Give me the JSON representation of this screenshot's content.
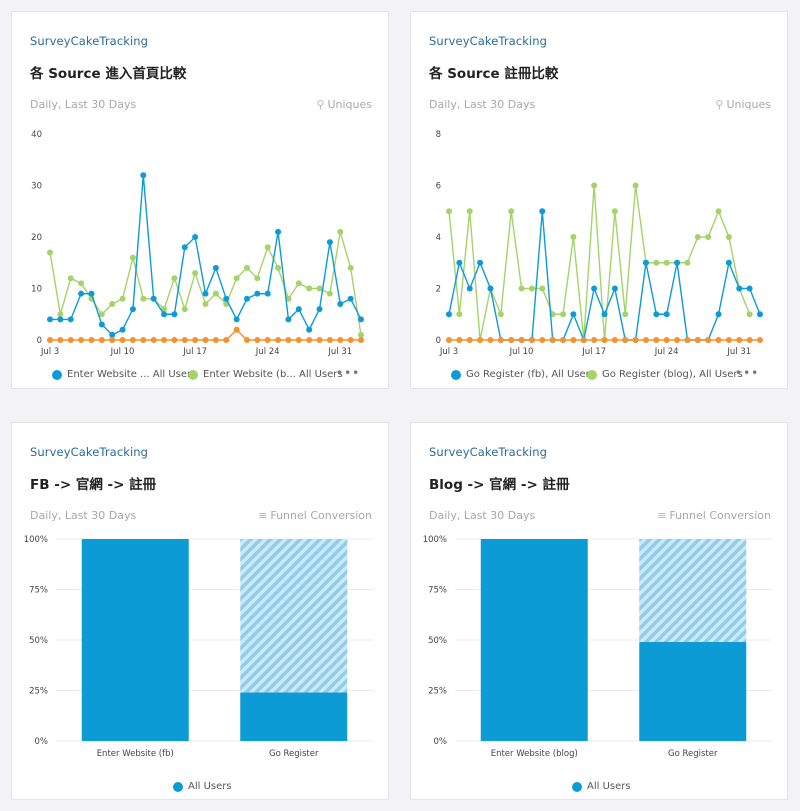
{
  "cards": [
    {
      "project": "SurveyCakeTracking",
      "title": "各 Source 進入首頁比較",
      "range": "Daily, Last 30 Days",
      "metric": "Uniques",
      "metric_icon": "uniques-icon",
      "legend": [
        {
          "label": "Enter Website ... All Users",
          "color": "#0d9bd6"
        },
        {
          "label": "Enter Website (b... All Users",
          "color": "#a5d36a"
        }
      ],
      "legend_more": "•••"
    },
    {
      "project": "SurveyCakeTracking",
      "title": "各 Source 註冊比較",
      "range": "Daily, Last 30 Days",
      "metric": "Uniques",
      "metric_icon": "uniques-icon",
      "legend": [
        {
          "label": "Go Register (fb), All Users",
          "color": "#0d9bd6"
        },
        {
          "label": "Go Register (blog), All Users",
          "color": "#a5d36a"
        }
      ],
      "legend_more": "•••"
    },
    {
      "project": "SurveyCakeTracking",
      "title": "FB -> 官網 -> 註冊",
      "range": "Daily, Last 30 Days",
      "metric": "Funnel Conversion",
      "metric_icon": "funnel-icon",
      "legend": [
        {
          "label": "All Users",
          "color": "#0d9bd6"
        }
      ]
    },
    {
      "project": "SurveyCakeTracking",
      "title": "Blog -> 官網 -> 註冊",
      "range": "Daily, Last 30 Days",
      "metric": "Funnel Conversion",
      "metric_icon": "funnel-icon",
      "legend": [
        {
          "label": "All Users",
          "color": "#0d9bd6"
        }
      ]
    }
  ],
  "chart_data": [
    {
      "type": "line",
      "ylim": [
        0,
        40
      ],
      "yticks": [
        "0",
        "10",
        "20",
        "30",
        "40"
      ],
      "xtick_labels": [
        "Jul 3",
        "Jul 10",
        "Jul 17",
        "Jul 24",
        "Jul 31"
      ],
      "xtick_index": [
        0,
        7,
        14,
        21,
        28
      ],
      "x": [
        "Jul 3",
        "Jul 4",
        "Jul 5",
        "Jul 6",
        "Jul 7",
        "Jul 8",
        "Jul 9",
        "Jul 10",
        "Jul 11",
        "Jul 12",
        "Jul 13",
        "Jul 14",
        "Jul 15",
        "Jul 16",
        "Jul 17",
        "Jul 18",
        "Jul 19",
        "Jul 20",
        "Jul 21",
        "Jul 22",
        "Jul 23",
        "Jul 24",
        "Jul 25",
        "Jul 26",
        "Jul 27",
        "Jul 28",
        "Jul 29",
        "Jul 30",
        "Jul 31",
        "Aug 1",
        "Aug 2"
      ],
      "series": [
        {
          "color": "#a5d36a",
          "values": [
            17,
            5,
            12,
            11,
            8,
            5,
            7,
            8,
            16,
            8,
            8,
            6,
            12,
            6,
            13,
            7,
            9,
            7,
            12,
            14,
            12,
            18,
            14,
            8,
            11,
            10,
            10,
            9,
            21,
            14,
            1
          ]
        },
        {
          "color": "#0d9bd6",
          "values": [
            4,
            4,
            4,
            9,
            9,
            3,
            1,
            2,
            6,
            32,
            8,
            5,
            5,
            18,
            20,
            9,
            14,
            8,
            4,
            8,
            9,
            9,
            21,
            4,
            6,
            2,
            6,
            19,
            7,
            8,
            4
          ]
        },
        {
          "color": "#f7902f",
          "values": [
            0,
            0,
            0,
            0,
            0,
            0,
            0,
            0,
            0,
            0,
            0,
            0,
            0,
            0,
            0,
            0,
            0,
            0,
            2,
            0,
            0,
            0,
            0,
            0,
            0,
            0,
            0,
            0,
            0,
            0,
            0
          ]
        }
      ]
    },
    {
      "type": "line",
      "ylim": [
        0,
        8
      ],
      "yticks": [
        "0",
        "2",
        "4",
        "6",
        "8"
      ],
      "xtick_labels": [
        "Jul 3",
        "Jul 10",
        "Jul 17",
        "Jul 24",
        "Jul 31"
      ],
      "xtick_index": [
        0,
        7,
        14,
        21,
        28
      ],
      "x": [
        "Jul 3",
        "Jul 4",
        "Jul 5",
        "Jul 6",
        "Jul 7",
        "Jul 8",
        "Jul 9",
        "Jul 10",
        "Jul 11",
        "Jul 12",
        "Jul 13",
        "Jul 14",
        "Jul 15",
        "Jul 16",
        "Jul 17",
        "Jul 18",
        "Jul 19",
        "Jul 20",
        "Jul 21",
        "Jul 22",
        "Jul 23",
        "Jul 24",
        "Jul 25",
        "Jul 26",
        "Jul 27",
        "Jul 28",
        "Jul 29",
        "Jul 30",
        "Jul 31",
        "Aug 1",
        "Aug 2"
      ],
      "series": [
        {
          "color": "#a5d36a",
          "values": [
            5,
            1,
            5,
            0,
            2,
            1,
            5,
            2,
            2,
            2,
            1,
            1,
            4,
            0,
            6,
            0,
            5,
            1,
            6,
            3,
            3,
            3,
            3,
            3,
            4,
            4,
            5,
            4,
            2,
            1,
            null
          ]
        },
        {
          "color": "#0d9bd6",
          "values": [
            1,
            3,
            2,
            3,
            2,
            0,
            0,
            0,
            0,
            5,
            0,
            0,
            1,
            0,
            2,
            1,
            2,
            0,
            0,
            3,
            1,
            1,
            3,
            0,
            0,
            0,
            1,
            3,
            2,
            2,
            1
          ]
        },
        {
          "color": "#f7902f",
          "values": [
            0,
            0,
            0,
            0,
            0,
            0,
            0,
            0,
            0,
            0,
            0,
            0,
            0,
            0,
            0,
            0,
            0,
            0,
            0,
            0,
            0,
            0,
            0,
            0,
            0,
            0,
            0,
            0,
            0,
            0,
            0
          ]
        }
      ]
    },
    {
      "type": "bar",
      "categories": [
        "Enter Website (fb)",
        "Go Register"
      ],
      "values": [
        100,
        24
      ],
      "ylim": [
        0,
        100
      ],
      "yticks": [
        "0%",
        "25%",
        "50%",
        "75%",
        "100%"
      ],
      "color": "#0d9bd6"
    },
    {
      "type": "bar",
      "categories": [
        "Enter Website (blog)",
        "Go Register"
      ],
      "values": [
        100,
        49
      ],
      "ylim": [
        0,
        100
      ],
      "yticks": [
        "0%",
        "25%",
        "50%",
        "75%",
        "100%"
      ],
      "color": "#0d9bd6"
    }
  ]
}
